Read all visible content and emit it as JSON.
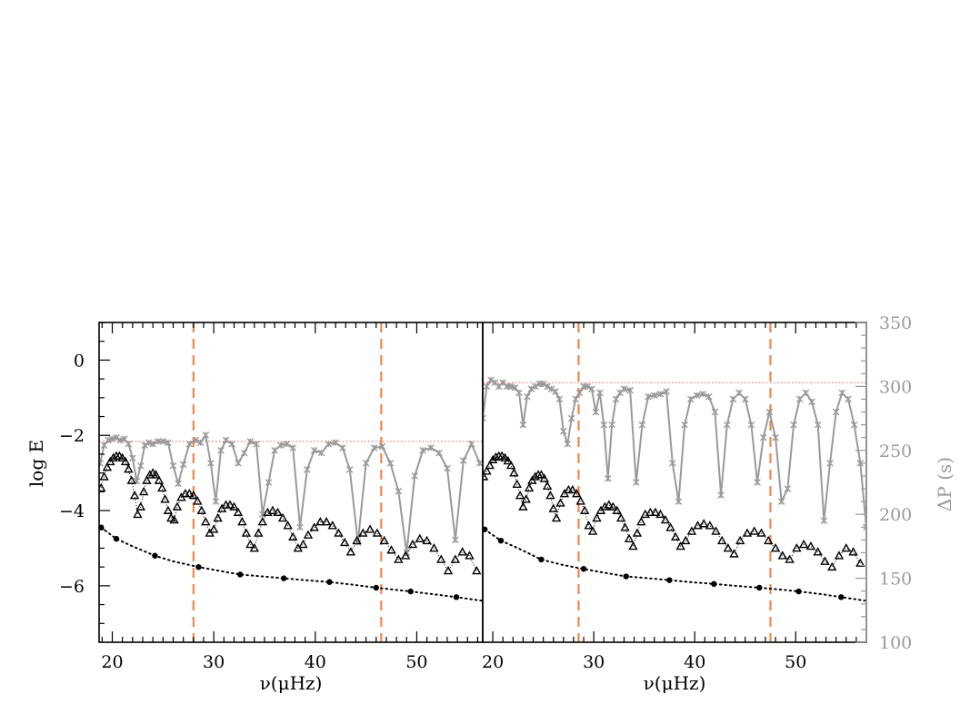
{
  "chart_data": {
    "type": "scatter",
    "left_ylabel": "log E",
    "right_ylabel": "ΔP (s)",
    "xlabel": "ν(μHz)",
    "left_ylim": [
      -7.5,
      1.0
    ],
    "right_ylim": [
      100,
      350
    ],
    "left_yticks": [
      "0",
      "−2",
      "−4",
      "−6"
    ],
    "left_ytick_values": [
      0,
      -2,
      -4,
      -6
    ],
    "right_yticks": [
      "350",
      "300",
      "250",
      "200",
      "150",
      "100"
    ],
    "right_ytick_values": [
      350,
      300,
      250,
      200,
      150,
      100
    ],
    "xticks": [
      "20",
      "30",
      "40",
      "50"
    ],
    "xtick_values": [
      20,
      30,
      40,
      50
    ],
    "colors": {
      "black": "#000000",
      "gray": "#9a9a9a",
      "dashed_vertical": "#f0864e",
      "dotted_horizontal": "#ff6464"
    },
    "panels": [
      {
        "xlim": [
          18.7,
          56.5
        ],
        "vertical_dashed_x": [
          28.0,
          46.5
        ],
        "horizontal_dotted_dp": 257,
        "period_spacing": {
          "name": "ΔP",
          "x": [
            18.8,
            19.2,
            19.6,
            20.0,
            20.4,
            20.8,
            21.2,
            21.6,
            22.0,
            22.4,
            22.8,
            23.2,
            23.6,
            24.0,
            24.5,
            25.0,
            25.5,
            26.0,
            26.5,
            27.0,
            27.6,
            28.2,
            28.7,
            29.2,
            29.7,
            30.2,
            30.7,
            31.2,
            31.8,
            32.4,
            33.0,
            33.6,
            34.2,
            34.8,
            35.4,
            36.0,
            36.6,
            37.2,
            37.8,
            38.5,
            39.2,
            39.9,
            40.6,
            41.3,
            42.0,
            42.7,
            43.4,
            44.2,
            45.0,
            45.8,
            46.6,
            47.4,
            48.2,
            49.0,
            49.8,
            50.6,
            51.4,
            52.2,
            53.0,
            53.8,
            54.6,
            55.4,
            56.2
          ],
          "y": [
            240,
            254,
            258,
            259,
            260,
            258,
            259,
            255,
            244,
            226,
            238,
            254,
            256,
            255,
            257,
            257,
            256,
            238,
            224,
            239,
            255,
            258,
            256,
            262,
            240,
            210,
            250,
            258,
            255,
            240,
            248,
            257,
            255,
            200,
            225,
            250,
            254,
            255,
            252,
            190,
            235,
            250,
            248,
            255,
            256,
            252,
            235,
            178,
            240,
            252,
            253,
            240,
            218,
            170,
            230,
            250,
            252,
            248,
            236,
            180,
            242,
            255,
            240
          ]
        },
        "triangles": {
          "x": [
            18.9,
            19.2,
            19.5,
            19.8,
            20.1,
            20.4,
            20.7,
            21.0,
            21.3,
            21.6,
            21.9,
            22.2,
            22.5,
            22.8,
            23.1,
            23.4,
            23.7,
            24.0,
            24.3,
            24.6,
            24.9,
            25.2,
            25.5,
            25.8,
            26.1,
            26.4,
            26.8,
            27.2,
            27.6,
            28.0,
            28.4,
            28.8,
            29.2,
            29.6,
            30.0,
            30.4,
            30.8,
            31.2,
            31.6,
            32.0,
            32.4,
            32.8,
            33.2,
            33.6,
            34.0,
            34.4,
            34.8,
            35.3,
            35.8,
            36.3,
            36.8,
            37.3,
            37.8,
            38.3,
            38.8,
            39.3,
            39.9,
            40.5,
            41.1,
            41.7,
            42.3,
            42.9,
            43.5,
            44.1,
            44.7,
            45.4,
            46.1,
            46.8,
            47.5,
            48.2,
            48.9,
            49.6,
            50.3,
            51.0,
            51.7,
            52.4,
            53.1,
            53.8,
            54.5,
            55.2,
            55.9
          ],
          "y": [
            -3.4,
            -3.1,
            -2.85,
            -2.7,
            -2.6,
            -2.55,
            -2.55,
            -2.6,
            -2.7,
            -2.9,
            -3.2,
            -3.6,
            -4.1,
            -3.9,
            -3.5,
            -3.2,
            -3.05,
            -3.0,
            -3.05,
            -3.2,
            -3.4,
            -3.7,
            -4.0,
            -4.2,
            -4.25,
            -3.9,
            -3.65,
            -3.55,
            -3.55,
            -3.6,
            -3.75,
            -4.0,
            -4.3,
            -4.6,
            -4.5,
            -4.2,
            -3.95,
            -3.85,
            -3.85,
            -3.9,
            -4.05,
            -4.3,
            -4.6,
            -4.9,
            -5.0,
            -4.6,
            -4.3,
            -4.05,
            -4.0,
            -4.05,
            -4.2,
            -4.4,
            -4.7,
            -5.0,
            -4.9,
            -4.65,
            -4.45,
            -4.3,
            -4.3,
            -4.4,
            -4.6,
            -4.85,
            -5.1,
            -4.8,
            -4.6,
            -4.5,
            -4.6,
            -4.8,
            -5.05,
            -5.3,
            -5.2,
            -4.9,
            -4.75,
            -4.8,
            -5.0,
            -5.3,
            -5.6,
            -5.3,
            -5.1,
            -5.2,
            -5.6
          ]
        },
        "dots": {
          "x": [
            18.9,
            20.4,
            24.2,
            28.5,
            32.6,
            36.9,
            41.4,
            46.0,
            49.4,
            53.9
          ],
          "y": [
            -4.45,
            -4.75,
            -5.2,
            -5.5,
            -5.7,
            -5.8,
            -5.9,
            -6.05,
            -6.15,
            -6.3
          ]
        },
        "dotted_line": {
          "x": [
            18.9,
            20.4,
            22.0,
            24.2,
            26.0,
            28.5,
            30.5,
            32.6,
            34.8,
            36.9,
            39.0,
            41.4,
            43.7,
            46.0,
            49.4,
            51.5,
            53.9,
            56.5
          ],
          "y": [
            -4.45,
            -4.75,
            -4.95,
            -5.2,
            -5.35,
            -5.5,
            -5.6,
            -5.7,
            -5.75,
            -5.8,
            -5.85,
            -5.9,
            -5.97,
            -6.05,
            -6.15,
            -6.22,
            -6.3,
            -6.4
          ]
        }
      },
      {
        "xlim": [
          19.0,
          57.0
        ],
        "vertical_dashed_x": [
          28.5,
          47.5
        ],
        "horizontal_dotted_dp": 303,
        "period_spacing": {
          "name": "ΔP",
          "x": [
            19.0,
            19.4,
            19.8,
            20.2,
            20.6,
            21.0,
            21.4,
            21.8,
            22.2,
            22.6,
            23.0,
            23.4,
            23.8,
            24.2,
            24.6,
            25.0,
            25.4,
            25.8,
            26.2,
            26.6,
            27.0,
            27.4,
            27.8,
            28.2,
            28.6,
            29.0,
            29.4,
            29.8,
            30.2,
            30.6,
            31.0,
            31.4,
            31.8,
            32.2,
            32.6,
            33.0,
            33.6,
            34.2,
            34.8,
            35.4,
            36.0,
            36.6,
            37.2,
            37.8,
            38.4,
            39.0,
            39.6,
            40.2,
            40.8,
            41.4,
            42.0,
            42.6,
            43.2,
            43.8,
            44.4,
            45.0,
            45.6,
            46.2,
            46.8,
            47.4,
            48.0,
            48.6,
            49.2,
            49.8,
            50.4,
            51.0,
            51.6,
            52.2,
            52.8,
            53.4,
            54.0,
            54.6,
            55.2,
            55.8,
            56.4,
            57.0
          ],
          "y": [
            275,
            300,
            305,
            303,
            300,
            303,
            300,
            300,
            299,
            295,
            270,
            292,
            298,
            300,
            302,
            302,
            300,
            298,
            296,
            290,
            265,
            255,
            275,
            290,
            295,
            300,
            300,
            298,
            280,
            295,
            270,
            228,
            270,
            290,
            295,
            298,
            297,
            225,
            270,
            292,
            293,
            294,
            296,
            240,
            210,
            270,
            290,
            293,
            294,
            292,
            280,
            215,
            270,
            290,
            295,
            290,
            270,
            225,
            260,
            280,
            260,
            210,
            220,
            270,
            290,
            295,
            288,
            270,
            195,
            240,
            280,
            295,
            290,
            270,
            240,
            190
          ]
        },
        "triangles": {
          "x": [
            19.1,
            19.4,
            19.7,
            20.0,
            20.3,
            20.6,
            20.9,
            21.2,
            21.5,
            21.8,
            22.1,
            22.4,
            22.7,
            23.0,
            23.3,
            23.6,
            23.9,
            24.2,
            24.5,
            24.8,
            25.1,
            25.4,
            25.7,
            26.0,
            26.3,
            26.7,
            27.1,
            27.5,
            27.9,
            28.3,
            28.7,
            29.1,
            29.5,
            29.9,
            30.3,
            30.7,
            31.1,
            31.5,
            31.9,
            32.3,
            32.7,
            33.1,
            33.5,
            33.9,
            34.3,
            34.7,
            35.1,
            35.6,
            36.1,
            36.6,
            37.1,
            37.6,
            38.1,
            38.6,
            39.1,
            39.7,
            40.3,
            40.9,
            41.5,
            42.1,
            42.7,
            43.3,
            43.9,
            44.5,
            45.2,
            45.9,
            46.6,
            47.3,
            48.0,
            48.7,
            49.4,
            50.1,
            50.8,
            51.5,
            52.2,
            52.9,
            53.6,
            54.3,
            55.0,
            55.7,
            56.4
          ],
          "y": [
            -3.1,
            -2.95,
            -2.8,
            -2.65,
            -2.58,
            -2.55,
            -2.55,
            -2.6,
            -2.68,
            -2.8,
            -3.0,
            -3.3,
            -3.6,
            -3.9,
            -3.7,
            -3.4,
            -3.2,
            -3.1,
            -3.05,
            -3.05,
            -3.15,
            -3.35,
            -3.6,
            -3.95,
            -4.2,
            -3.8,
            -3.55,
            -3.45,
            -3.45,
            -3.55,
            -3.75,
            -4.0,
            -4.4,
            -4.55,
            -4.2,
            -4.0,
            -3.9,
            -3.85,
            -3.9,
            -4.0,
            -4.2,
            -4.45,
            -4.75,
            -4.95,
            -4.6,
            -4.3,
            -4.1,
            -4.05,
            -4.05,
            -4.1,
            -4.25,
            -4.45,
            -4.7,
            -4.95,
            -4.8,
            -4.55,
            -4.4,
            -4.35,
            -4.4,
            -4.55,
            -4.8,
            -5.0,
            -5.15,
            -4.8,
            -4.6,
            -4.55,
            -4.6,
            -4.8,
            -5.0,
            -5.2,
            -5.3,
            -5.0,
            -4.9,
            -4.95,
            -5.1,
            -5.35,
            -5.5,
            -5.2,
            -5.0,
            -5.1,
            -5.4
          ]
        },
        "dots": {
          "x": [
            19.2,
            20.8,
            24.8,
            29.0,
            33.2,
            37.5,
            41.9,
            46.4,
            50.3,
            54.5
          ],
          "y": [
            -4.5,
            -4.8,
            -5.3,
            -5.55,
            -5.75,
            -5.85,
            -5.95,
            -6.05,
            -6.15,
            -6.3
          ]
        },
        "dotted_line": {
          "x": [
            19.2,
            20.8,
            22.5,
            24.8,
            27.0,
            29.0,
            31.0,
            33.2,
            35.5,
            37.5,
            39.5,
            41.9,
            44.0,
            46.4,
            48.5,
            50.3,
            52.5,
            54.5,
            57.0
          ],
          "y": [
            -4.5,
            -4.8,
            -5.0,
            -5.3,
            -5.45,
            -5.55,
            -5.65,
            -5.75,
            -5.8,
            -5.85,
            -5.9,
            -5.95,
            -6.0,
            -6.05,
            -6.1,
            -6.15,
            -6.22,
            -6.3,
            -6.4
          ]
        }
      }
    ]
  }
}
